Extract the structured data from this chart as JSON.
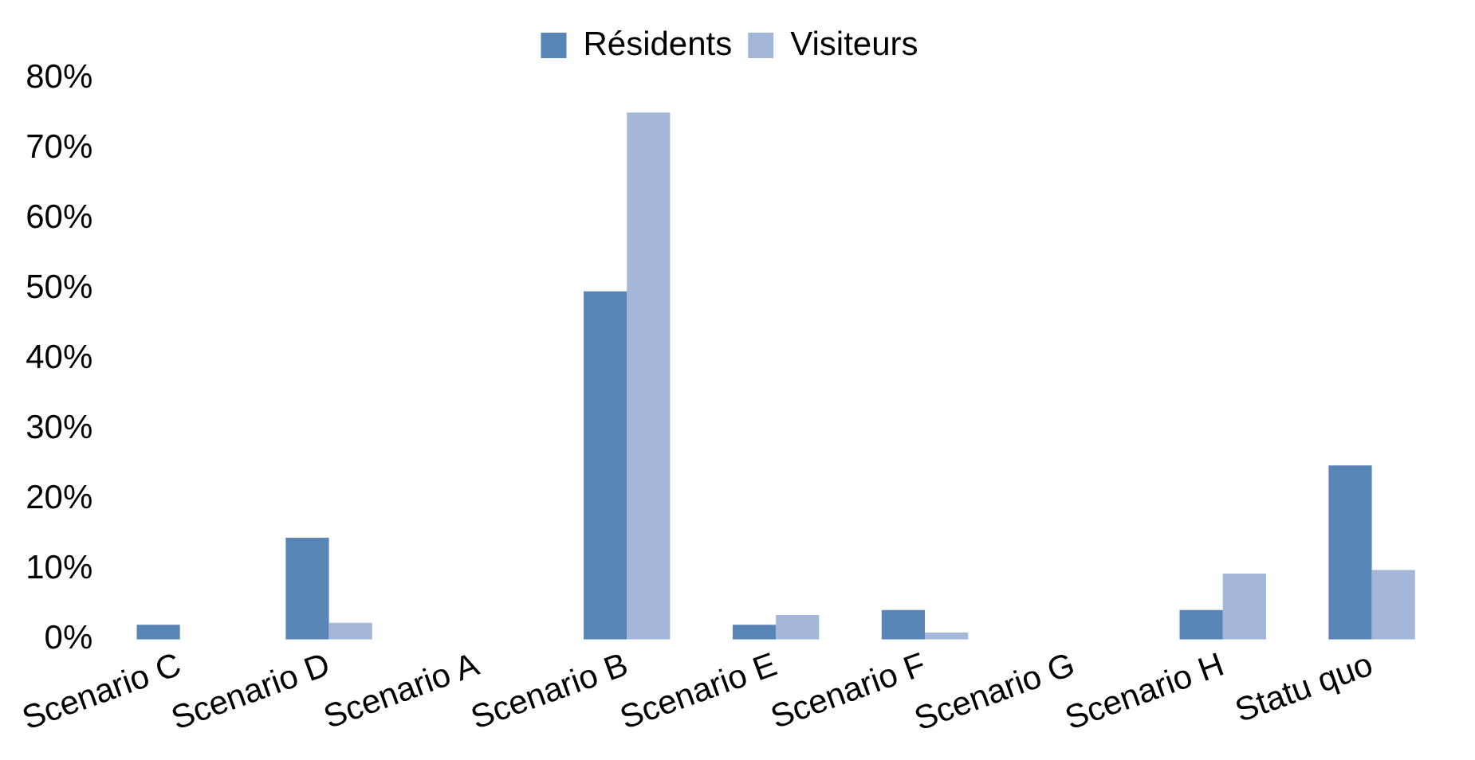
{
  "chart_data": {
    "type": "bar",
    "categories": [
      "Scenario C",
      "Scenario D",
      "Scenario A",
      "Scenario B",
      "Scenario E",
      "Scenario F",
      "Scenario G",
      "Scenario H",
      "Statu quo"
    ],
    "series": [
      {
        "name": "Résidents",
        "color": "#5884b6",
        "values": [
          2.1,
          14.5,
          0,
          49.6,
          2.1,
          4.2,
          0,
          4.2,
          24.8
        ]
      },
      {
        "name": "Visiteurs",
        "color": "#a4b7d8",
        "values": [
          0,
          2.4,
          0,
          75.1,
          3.5,
          1.0,
          0,
          9.4,
          9.9
        ]
      }
    ],
    "ylim": [
      0,
      80
    ],
    "yticks": [
      {
        "value": 0,
        "label": "0%"
      },
      {
        "value": 10,
        "label": "10%"
      },
      {
        "value": 20,
        "label": "20%"
      },
      {
        "value": 30,
        "label": "30%"
      },
      {
        "value": 40,
        "label": "40%"
      },
      {
        "value": 50,
        "label": "50%"
      },
      {
        "value": 60,
        "label": "60%"
      },
      {
        "value": 70,
        "label": "70%"
      },
      {
        "value": 80,
        "label": "80%"
      }
    ],
    "grid": false,
    "legend": "top"
  }
}
